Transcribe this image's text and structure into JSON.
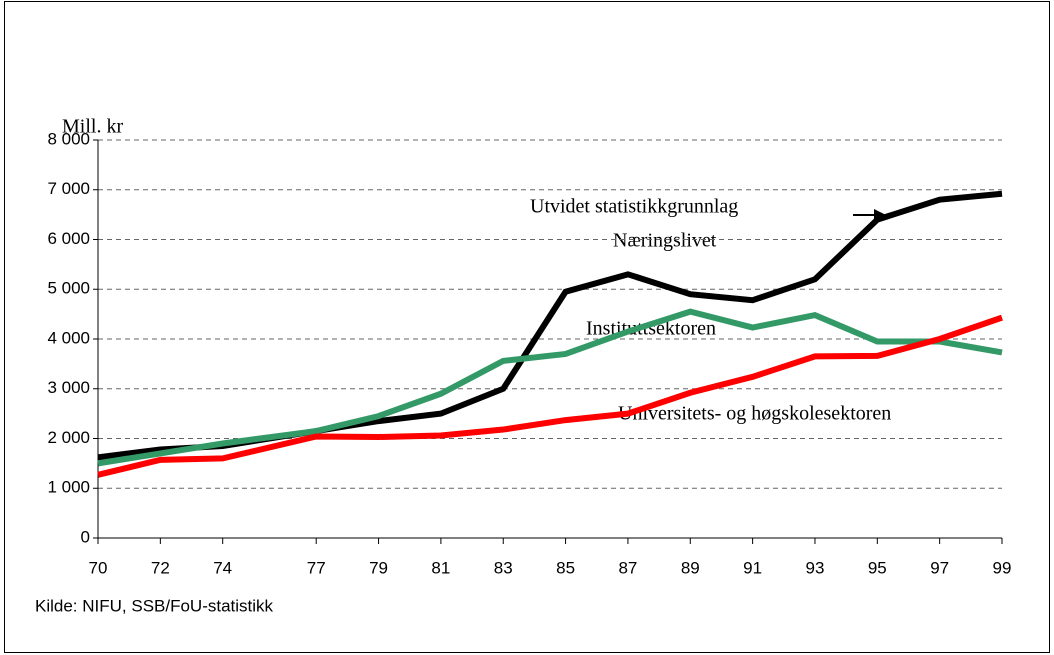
{
  "chart_data": {
    "type": "line",
    "y_axis_label": "Mill. kr",
    "annotation": "Utvidet statistikkgrunnlag",
    "source": "Kilde: NIFU, SSB/FoU-statistikk",
    "x": [
      70,
      72,
      74,
      77,
      79,
      81,
      83,
      85,
      87,
      89,
      91,
      93,
      95,
      97,
      99
    ],
    "xlim": [
      70,
      99
    ],
    "xticks": [
      70,
      72,
      74,
      77,
      79,
      81,
      83,
      85,
      87,
      89,
      91,
      93,
      95,
      97,
      99
    ],
    "ylim": [
      0,
      8000
    ],
    "yticks": [
      0,
      {
        "value": 1000,
        "label": "1 000"
      },
      {
        "value": 2000,
        "label": "2 000"
      },
      {
        "value": 3000,
        "label": "3 000"
      },
      {
        "value": 4000,
        "label": "4 000"
      },
      {
        "value": 5000,
        "label": "5 000"
      },
      {
        "value": 6000,
        "label": "6 000"
      },
      {
        "value": 7000,
        "label": "7 000"
      },
      {
        "value": 8000,
        "label": "8 000"
      }
    ],
    "grid": true,
    "series": [
      {
        "name": "Næringslivet",
        "color": "#000000",
        "values": [
          1620,
          1780,
          1850,
          2150,
          2350,
          2500,
          3000,
          4950,
          5300,
          4900,
          4780,
          5200,
          6400,
          6800,
          6920
        ]
      },
      {
        "name": "Instituttsektoren",
        "color": "#339966",
        "values": [
          1500,
          1700,
          1900,
          2150,
          2450,
          2900,
          3560,
          3700,
          4150,
          4550,
          4230,
          4480,
          3950,
          3950,
          3730
        ]
      },
      {
        "name": "Universitets- og høgskolesektoren",
        "color": "#ff0000",
        "values": [
          1270,
          1570,
          1600,
          2040,
          2030,
          2060,
          2180,
          2370,
          2500,
          2920,
          3240,
          3650,
          3660,
          4000,
          4430
        ]
      }
    ]
  }
}
